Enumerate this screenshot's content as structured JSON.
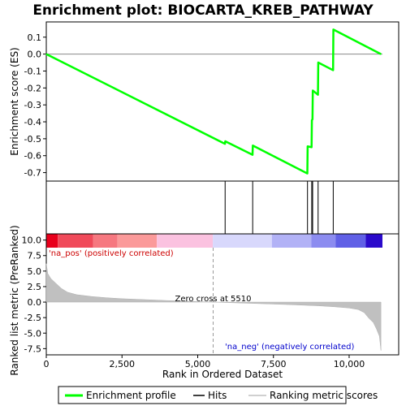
{
  "chart_data": {
    "type": "line",
    "title": "Enrichment plot: BIOCARTA_KREB_PATHWAY",
    "xlabel": "Rank in Ordered Dataset",
    "es_panel": {
      "ylabel": "Enrichment score (ES)",
      "ylim": [
        -0.75,
        0.19
      ],
      "yticks": [
        0.1,
        0.0,
        -0.1,
        -0.2,
        -0.3,
        -0.4,
        -0.5,
        -0.6,
        -0.7
      ],
      "ytick_labels": [
        "0.1",
        "0.0",
        "-0.1",
        "-0.2",
        "-0.3",
        "-0.4",
        "-0.5",
        "-0.6",
        "-0.7"
      ],
      "color": "#00ff00",
      "x": [
        0,
        5900,
        5910,
        6810,
        6820,
        8620,
        8630,
        8760,
        8770,
        8790,
        8800,
        8970,
        8980,
        9470,
        9480,
        11050
      ],
      "y": [
        0.0,
        -0.53,
        -0.515,
        -0.595,
        -0.54,
        -0.705,
        -0.545,
        -0.55,
        -0.39,
        -0.385,
        -0.215,
        -0.24,
        -0.05,
        -0.095,
        0.145,
        0.0
      ]
    },
    "hits": {
      "positions": [
        5905,
        6815,
        8625,
        8765,
        8795,
        8975,
        9475
      ],
      "color": "#000000"
    },
    "color_bar": {
      "segments": [
        {
          "x0": 0,
          "x1": 380,
          "color": "#e8001c"
        },
        {
          "x0": 380,
          "x1": 1550,
          "color": "#f04a5a"
        },
        {
          "x0": 1550,
          "x1": 2350,
          "color": "#f67880"
        },
        {
          "x0": 2350,
          "x1": 3650,
          "color": "#fb9a9a"
        },
        {
          "x0": 3650,
          "x1": 5500,
          "color": "#fbc2e0"
        },
        {
          "x0": 5500,
          "x1": 7450,
          "color": "#d8d8fc"
        },
        {
          "x0": 7450,
          "x1": 8750,
          "color": "#b2b2f6"
        },
        {
          "x0": 8750,
          "x1": 9550,
          "color": "#8c8cf0"
        },
        {
          "x0": 9550,
          "x1": 10550,
          "color": "#6060e6"
        },
        {
          "x0": 10550,
          "x1": 11100,
          "color": "#2a0acb"
        }
      ]
    },
    "metric_panel": {
      "ylabel": "Ranked list metric (PreRanked)",
      "ylim": [
        -8.5,
        11.0
      ],
      "yticks": [
        10.0,
        7.5,
        5.0,
        2.5,
        0.0,
        -2.5,
        -5.0,
        -7.5
      ],
      "ytick_labels": [
        "10.0",
        "7.5",
        "5.0",
        "2.5",
        "0.0",
        "-2.5",
        "-5.0",
        "-7.5"
      ],
      "color": "#c0c0c0",
      "x": [
        0,
        50,
        150,
        300,
        500,
        700,
        1000,
        1500,
        2000,
        2500,
        3000,
        3500,
        4000,
        4500,
        5000,
        5510,
        6000,
        6500,
        7000,
        7500,
        8000,
        8500,
        9000,
        9500,
        10000,
        10300,
        10500,
        10650,
        10800,
        10900,
        11000,
        11050
      ],
      "y": [
        6.2,
        4.6,
        3.8,
        3.1,
        2.2,
        1.6,
        1.2,
        0.9,
        0.7,
        0.55,
        0.45,
        0.35,
        0.25,
        0.17,
        0.08,
        0.0,
        -0.08,
        -0.16,
        -0.24,
        -0.32,
        -0.4,
        -0.5,
        -0.6,
        -0.75,
        -0.95,
        -1.2,
        -1.7,
        -2.6,
        -3.3,
        -4.3,
        -5.5,
        -7.8
      ]
    },
    "xlim": [
      0,
      11100
    ],
    "xticks": [
      0,
      2500,
      5000,
      7500,
      10000
    ],
    "xtick_labels": [
      "0",
      "2,500",
      "5,000",
      "7,500",
      "10,000"
    ],
    "zero_cross": {
      "rank": 5510,
      "label": "Zero cross at 5510"
    },
    "annotations": {
      "pos": {
        "text": "'na_pos' (positively correlated)",
        "color": "#cc0000"
      },
      "neg": {
        "text": "'na_neg' (negatively correlated)",
        "color": "#0000cc"
      }
    },
    "legend": {
      "position": "bottom",
      "items": [
        {
          "label": "Enrichment profile",
          "color": "#00ff00",
          "kind": "line"
        },
        {
          "label": "Hits",
          "color": "#000000",
          "kind": "line"
        },
        {
          "label": "Ranking metric scores",
          "color": "#c0c0c0",
          "kind": "line"
        }
      ]
    }
  }
}
